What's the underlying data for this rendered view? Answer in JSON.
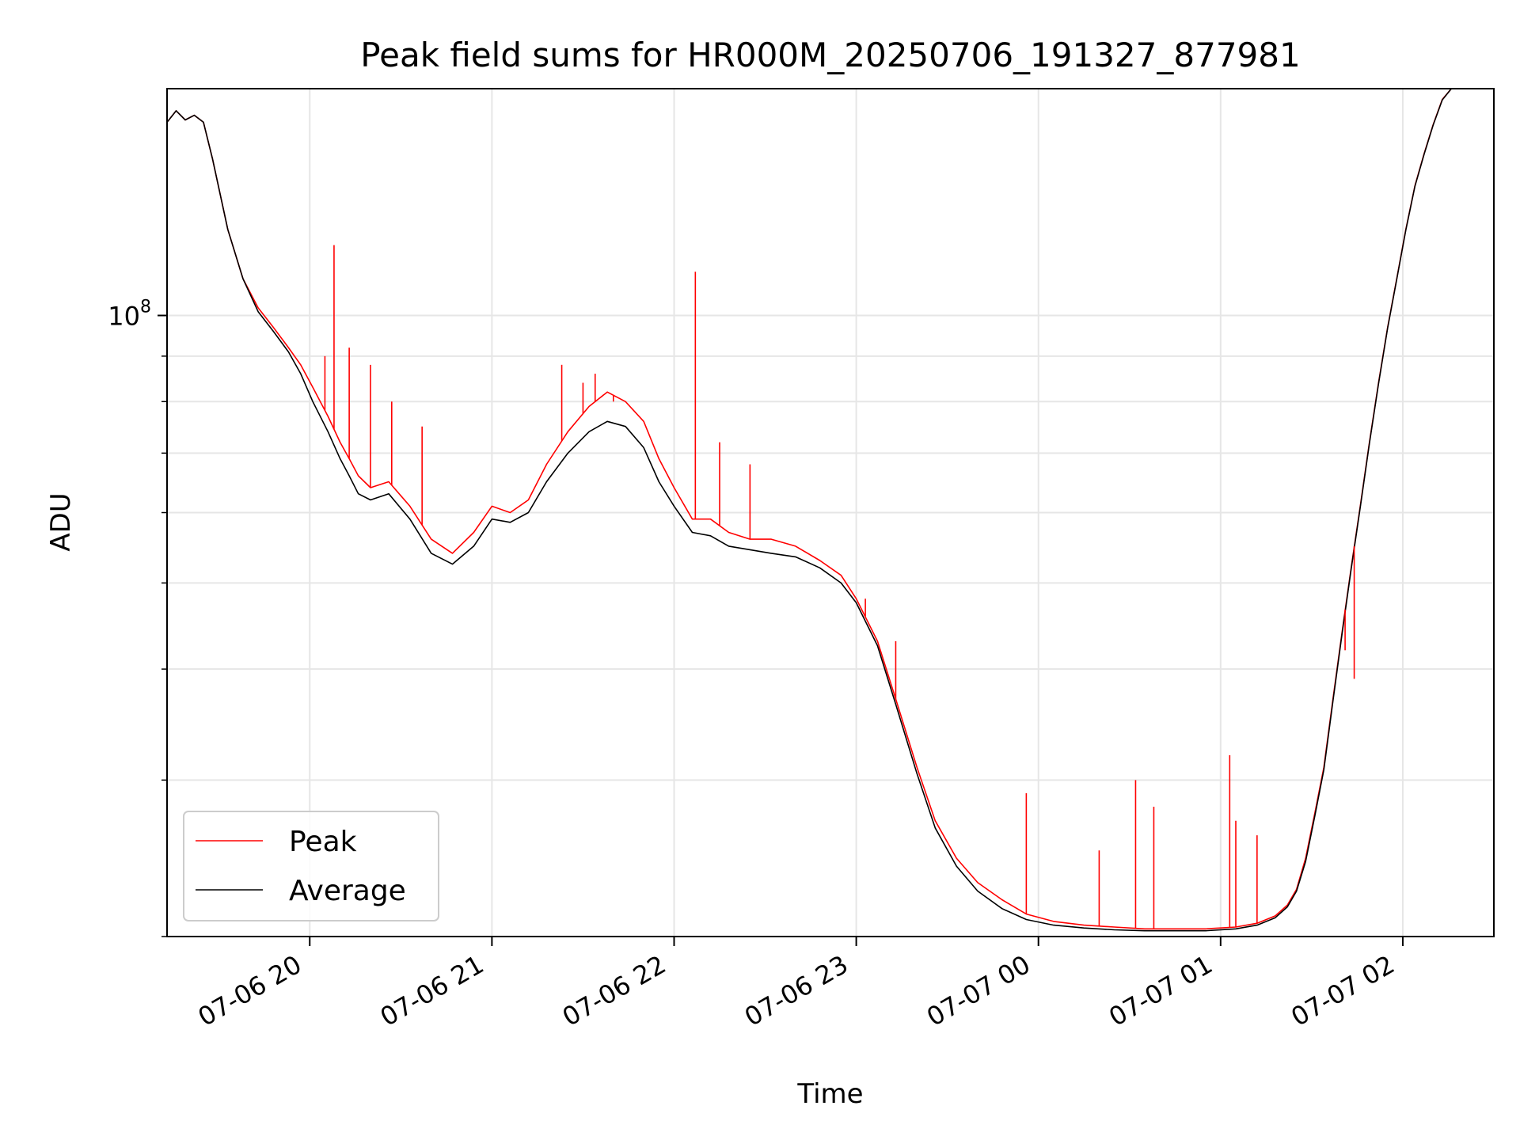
{
  "chart_data": {
    "type": "line",
    "title": "Peak field sums for HR000M_20250706_191327_877981",
    "xlabel": "Time",
    "ylabel": "ADU",
    "x_scale": "time",
    "y_scale": "log",
    "xlim": [
      "2025-07-06 19:13",
      "2025-07-07 02:30"
    ],
    "ylim": [
      20000000,
      180000000
    ],
    "x_ticks": [
      {
        "value": "2025-07-06 20:00",
        "label": "07-06 20"
      },
      {
        "value": "2025-07-06 21:00",
        "label": "07-06 21"
      },
      {
        "value": "2025-07-06 22:00",
        "label": "07-06 22"
      },
      {
        "value": "2025-07-06 23:00",
        "label": "07-06 23"
      },
      {
        "value": "2025-07-07 00:00",
        "label": "07-07 00"
      },
      {
        "value": "2025-07-07 01:00",
        "label": "07-07 01"
      },
      {
        "value": "2025-07-07 02:00",
        "label": "07-07 02"
      }
    ],
    "y_major_ticks": [
      {
        "value": 100000000,
        "base": "10",
        "exp": "8"
      }
    ],
    "y_minor_ticks": [
      20000000,
      30000000,
      40000000,
      50000000,
      60000000,
      70000000,
      80000000,
      90000000
    ],
    "grid": true,
    "legend_position": "lower-left",
    "series": [
      {
        "name": "Peak",
        "color": "#ff0000",
        "x": [
          "2025-07-06 19:13",
          "2025-07-06 19:16",
          "2025-07-06 19:19",
          "2025-07-06 19:22",
          "2025-07-06 19:25",
          "2025-07-06 19:28",
          "2025-07-06 19:33",
          "2025-07-06 19:38",
          "2025-07-06 19:43",
          "2025-07-06 19:48",
          "2025-07-06 19:53",
          "2025-07-06 19:57",
          "2025-07-06 20:01",
          "2025-07-06 20:06",
          "2025-07-06 20:10",
          "2025-07-06 20:13",
          "2025-07-06 20:16",
          "2025-07-06 20:20",
          "2025-07-06 20:26",
          "2025-07-06 20:33",
          "2025-07-06 20:40",
          "2025-07-06 20:47",
          "2025-07-06 20:54",
          "2025-07-06 21:00",
          "2025-07-06 21:06",
          "2025-07-06 21:12",
          "2025-07-06 21:18",
          "2025-07-06 21:25",
          "2025-07-06 21:32",
          "2025-07-06 21:38",
          "2025-07-06 21:44",
          "2025-07-06 21:50",
          "2025-07-06 21:55",
          "2025-07-06 22:00",
          "2025-07-06 22:06",
          "2025-07-06 22:12",
          "2025-07-06 22:18",
          "2025-07-06 22:25",
          "2025-07-06 22:32",
          "2025-07-06 22:40",
          "2025-07-06 22:48",
          "2025-07-06 22:55",
          "2025-07-06 23:00",
          "2025-07-06 23:07",
          "2025-07-06 23:13",
          "2025-07-06 23:20",
          "2025-07-06 23:26",
          "2025-07-06 23:33",
          "2025-07-06 23:40",
          "2025-07-06 23:48",
          "2025-07-06 23:56",
          "2025-07-07 00:05",
          "2025-07-07 00:15",
          "2025-07-07 00:25",
          "2025-07-07 00:35",
          "2025-07-07 00:45",
          "2025-07-07 00:55",
          "2025-07-07 01:05",
          "2025-07-07 01:12",
          "2025-07-07 01:18",
          "2025-07-07 01:22",
          "2025-07-07 01:25",
          "2025-07-07 01:28",
          "2025-07-07 01:31",
          "2025-07-07 01:34",
          "2025-07-07 01:37",
          "2025-07-07 01:40",
          "2025-07-07 01:43",
          "2025-07-07 01:46",
          "2025-07-07 01:49",
          "2025-07-07 01:52",
          "2025-07-07 01:55",
          "2025-07-07 01:58",
          "2025-07-07 02:01",
          "2025-07-07 02:04",
          "2025-07-07 02:07",
          "2025-07-07 02:10",
          "2025-07-07 02:13",
          "2025-07-07 02:16"
        ],
        "y": [
          165000000,
          170000000,
          166000000,
          168000000,
          165000000,
          150000000,
          125000000,
          110000000,
          102000000,
          97000000,
          92000000,
          88000000,
          83000000,
          77000000,
          72000000,
          69000000,
          66000000,
          64000000,
          65000000,
          61000000,
          56000000,
          54000000,
          57000000,
          61000000,
          60000000,
          62000000,
          68000000,
          74000000,
          79000000,
          82000000,
          80000000,
          76000000,
          69000000,
          64000000,
          59000000,
          59000000,
          57000000,
          56000000,
          56000000,
          55000000,
          53000000,
          51000000,
          48000000,
          43000000,
          37000000,
          31000000,
          27000000,
          24500000,
          23000000,
          22000000,
          21200000,
          20800000,
          20600000,
          20500000,
          20400000,
          20400000,
          20400000,
          20500000,
          20700000,
          21100000,
          21700000,
          22600000,
          24500000,
          27500000,
          31000000,
          37000000,
          44000000,
          52000000,
          61000000,
          72000000,
          84000000,
          97000000,
          110000000,
          125000000,
          140000000,
          152000000,
          164000000,
          175000000,
          180000000
        ]
      },
      {
        "name": "Average",
        "color": "#000000",
        "x": [
          "2025-07-06 19:13",
          "2025-07-06 19:16",
          "2025-07-06 19:19",
          "2025-07-06 19:22",
          "2025-07-06 19:25",
          "2025-07-06 19:28",
          "2025-07-06 19:33",
          "2025-07-06 19:38",
          "2025-07-06 19:43",
          "2025-07-06 19:48",
          "2025-07-06 19:53",
          "2025-07-06 19:57",
          "2025-07-06 20:01",
          "2025-07-06 20:06",
          "2025-07-06 20:10",
          "2025-07-06 20:13",
          "2025-07-06 20:16",
          "2025-07-06 20:20",
          "2025-07-06 20:26",
          "2025-07-06 20:33",
          "2025-07-06 20:40",
          "2025-07-06 20:47",
          "2025-07-06 20:54",
          "2025-07-06 21:00",
          "2025-07-06 21:06",
          "2025-07-06 21:12",
          "2025-07-06 21:18",
          "2025-07-06 21:25",
          "2025-07-06 21:32",
          "2025-07-06 21:38",
          "2025-07-06 21:44",
          "2025-07-06 21:50",
          "2025-07-06 21:55",
          "2025-07-06 22:00",
          "2025-07-06 22:06",
          "2025-07-06 22:12",
          "2025-07-06 22:18",
          "2025-07-06 22:25",
          "2025-07-06 22:32",
          "2025-07-06 22:40",
          "2025-07-06 22:48",
          "2025-07-06 22:55",
          "2025-07-06 23:00",
          "2025-07-06 23:07",
          "2025-07-06 23:13",
          "2025-07-06 23:20",
          "2025-07-06 23:26",
          "2025-07-06 23:33",
          "2025-07-06 23:40",
          "2025-07-06 23:48",
          "2025-07-06 23:56",
          "2025-07-07 00:05",
          "2025-07-07 00:15",
          "2025-07-07 00:25",
          "2025-07-07 00:35",
          "2025-07-07 00:45",
          "2025-07-07 00:55",
          "2025-07-07 01:05",
          "2025-07-07 01:12",
          "2025-07-07 01:18",
          "2025-07-07 01:22",
          "2025-07-07 01:25",
          "2025-07-07 01:28",
          "2025-07-07 01:31",
          "2025-07-07 01:34",
          "2025-07-07 01:37",
          "2025-07-07 01:40",
          "2025-07-07 01:43",
          "2025-07-07 01:46",
          "2025-07-07 01:49",
          "2025-07-07 01:52",
          "2025-07-07 01:55",
          "2025-07-07 01:58",
          "2025-07-07 02:01",
          "2025-07-07 02:04",
          "2025-07-07 02:07",
          "2025-07-07 02:10",
          "2025-07-07 02:13",
          "2025-07-07 02:16"
        ],
        "y": [
          165000000,
          170000000,
          166000000,
          168000000,
          165000000,
          150000000,
          125000000,
          110000000,
          101000000,
          96000000,
          91000000,
          86000000,
          80000000,
          74000000,
          69000000,
          66000000,
          63000000,
          62000000,
          63000000,
          59000000,
          54000000,
          52500000,
          55000000,
          59000000,
          58500000,
          60000000,
          65000000,
          70000000,
          74000000,
          76000000,
          75000000,
          71000000,
          65000000,
          61000000,
          57000000,
          56500000,
          55000000,
          54500000,
          54000000,
          53500000,
          52000000,
          50000000,
          47500000,
          42500000,
          36500000,
          30500000,
          26500000,
          24000000,
          22500000,
          21500000,
          20900000,
          20600000,
          20450000,
          20350000,
          20300000,
          20300000,
          20300000,
          20400000,
          20600000,
          21000000,
          21600000,
          22500000,
          24300000,
          27300000,
          30800000,
          36800000,
          43800000,
          51800000,
          60800000,
          71800000,
          83800000,
          96800000,
          109800000,
          124800000,
          139800000,
          151800000,
          163800000,
          174800000,
          180000000
        ]
      }
    ],
    "peak_spikes": [
      {
        "x": "2025-07-06 20:05",
        "y": 90000000
      },
      {
        "x": "2025-07-06 20:08",
        "y": 120000000
      },
      {
        "x": "2025-07-06 20:13",
        "y": 92000000
      },
      {
        "x": "2025-07-06 20:20",
        "y": 88000000
      },
      {
        "x": "2025-07-06 20:27",
        "y": 80000000
      },
      {
        "x": "2025-07-06 20:37",
        "y": 75000000
      },
      {
        "x": "2025-07-06 21:23",
        "y": 88000000
      },
      {
        "x": "2025-07-06 21:30",
        "y": 84000000
      },
      {
        "x": "2025-07-06 21:34",
        "y": 86000000
      },
      {
        "x": "2025-07-06 21:40",
        "y": 80000000
      },
      {
        "x": "2025-07-06 22:07",
        "y": 112000000
      },
      {
        "x": "2025-07-06 22:15",
        "y": 72000000
      },
      {
        "x": "2025-07-06 22:25",
        "y": 68000000
      },
      {
        "x": "2025-07-06 23:03",
        "y": 48000000
      },
      {
        "x": "2025-07-06 23:13",
        "y": 43000000
      },
      {
        "x": "2025-07-06 23:56",
        "y": 29000000
      },
      {
        "x": "2025-07-07 00:20",
        "y": 25000000
      },
      {
        "x": "2025-07-07 00:32",
        "y": 30000000
      },
      {
        "x": "2025-07-07 00:38",
        "y": 28000000
      },
      {
        "x": "2025-07-07 01:03",
        "y": 32000000
      },
      {
        "x": "2025-07-07 01:05",
        "y": 27000000
      },
      {
        "x": "2025-07-07 01:12",
        "y": 26000000
      },
      {
        "x": "2025-07-07 01:37",
        "y": 37000000
      },
      {
        "x": "2025-07-07 01:41",
        "y": 42000000
      },
      {
        "x": "2025-07-07 01:44",
        "y": 39000000
      }
    ]
  }
}
